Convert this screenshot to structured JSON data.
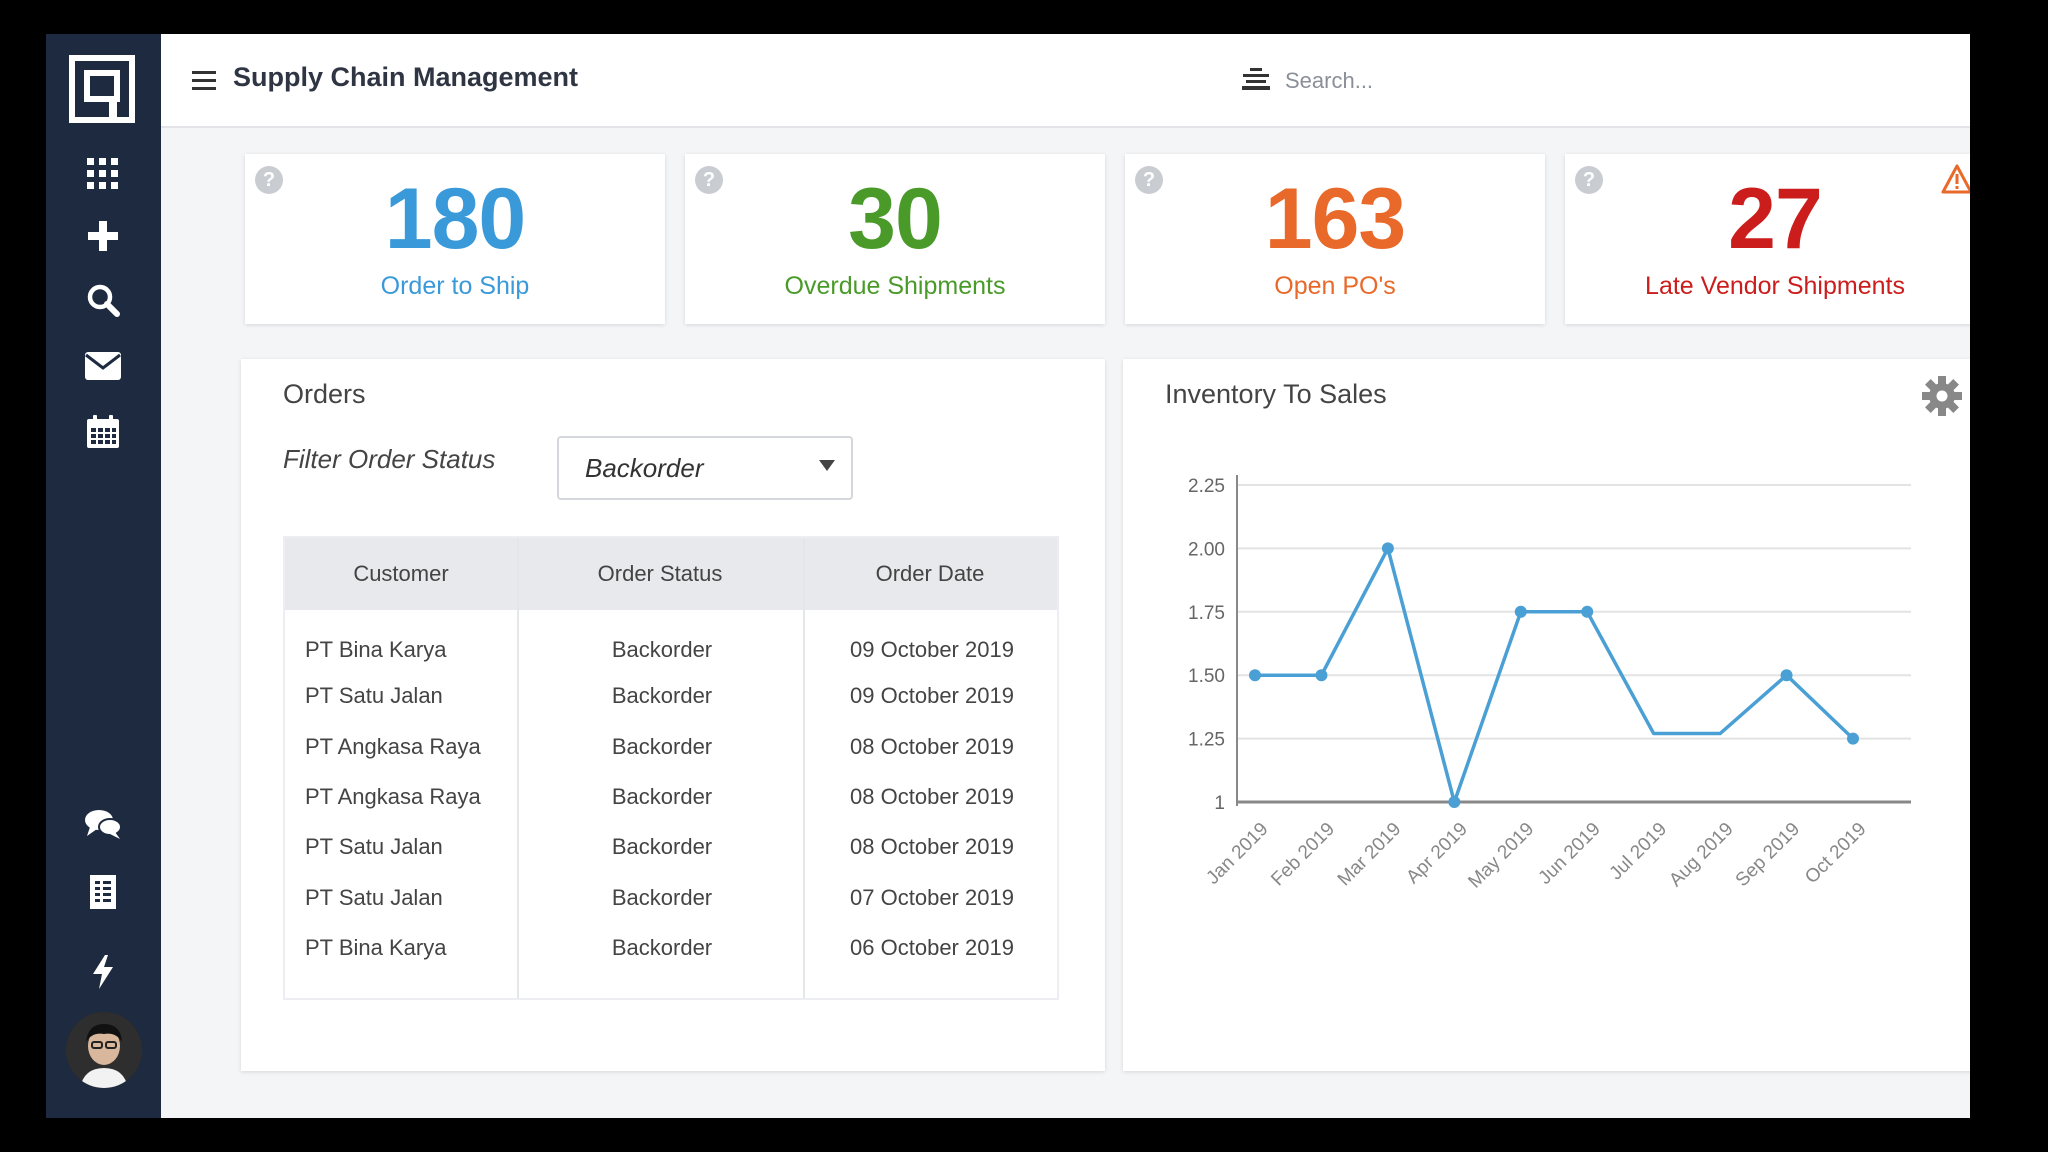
{
  "app": {
    "title": "Supply Chain Management"
  },
  "search": {
    "placeholder": "Search..."
  },
  "sidebar": {
    "icons": [
      "logo-icon",
      "apps-grid-icon",
      "plus-icon",
      "search-icon",
      "mail-icon",
      "calendar-icon",
      "chat-icon",
      "document-icon",
      "lightning-icon"
    ]
  },
  "kpis": [
    {
      "value": "180",
      "label": "Order to Ship",
      "color": "#3a9ad9"
    },
    {
      "value": "30",
      "label": "Overdue Shipments",
      "color": "#4a9a2a"
    },
    {
      "value": "163",
      "label": "Open PO's",
      "color": "#e8692a"
    },
    {
      "value": "27",
      "label": "Late Vendor Shipments",
      "color": "#cc1d1d"
    }
  ],
  "orders": {
    "title": "Orders",
    "filter_label": "Filter Order Status",
    "filter_value": "Backorder",
    "columns": [
      "Customer",
      "Order Status",
      "Order Date"
    ],
    "rows": [
      {
        "customer": "PT Bina Karya",
        "status": "Backorder",
        "date": "09 October 2019"
      },
      {
        "customer": "PT Satu Jalan",
        "status": "Backorder",
        "date": "09 October 2019"
      },
      {
        "customer": "PT Angkasa Raya",
        "status": "Backorder",
        "date": "08 October 2019"
      },
      {
        "customer": "PT Angkasa Raya",
        "status": "Backorder",
        "date": "08 October 2019"
      },
      {
        "customer": "PT Satu Jalan",
        "status": "Backorder",
        "date": "08 October 2019"
      },
      {
        "customer": "PT Satu Jalan",
        "status": "Backorder",
        "date": "07 October 2019"
      },
      {
        "customer": "PT Bina Karya",
        "status": "Backorder",
        "date": "06 October 2019"
      }
    ]
  },
  "inventory": {
    "title": "Inventory To Sales",
    "chart_data": {
      "type": "line",
      "title": "Inventory To Sales",
      "categories": [
        "Jan 2019",
        "Feb 2019",
        "Mar 2019",
        "Apr 2019",
        "May 2019",
        "Jun 2019",
        "Jul 2019",
        "Aug 2019",
        "Sep 2019",
        "Oct 2019"
      ],
      "series": [
        {
          "values": [
            1.5,
            1.5,
            2.0,
            1.0,
            1.75,
            1.75,
            1.27,
            1.27,
            1.5,
            1.25
          ],
          "markers": [
            true,
            true,
            true,
            true,
            true,
            true,
            false,
            false,
            true,
            true
          ]
        }
      ],
      "yticks": [
        "1",
        "1.25",
        "1.50",
        "1.75",
        "2.00",
        "2.25"
      ],
      "ylim": [
        1,
        2.25
      ],
      "grid": true,
      "color": "#4aa0d5"
    }
  }
}
